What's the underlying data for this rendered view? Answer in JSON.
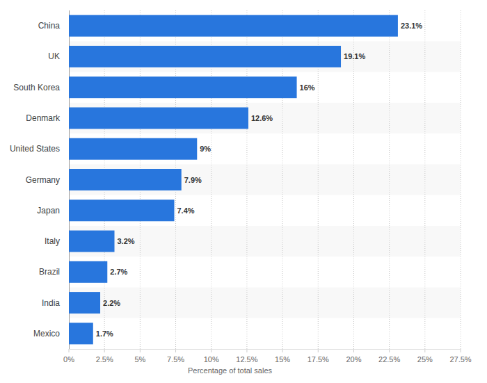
{
  "chart_data": {
    "type": "bar",
    "orientation": "horizontal",
    "categories": [
      "China",
      "UK",
      "South Korea",
      "Denmark",
      "United States",
      "Germany",
      "Japan",
      "Italy",
      "Brazil",
      "India",
      "Mexico"
    ],
    "values": [
      23.1,
      19.1,
      16,
      12.6,
      9,
      7.9,
      7.4,
      3.2,
      2.7,
      2.2,
      1.7
    ],
    "value_labels": [
      "23.1%",
      "19.1%",
      "16%",
      "12.6%",
      "9%",
      "7.9%",
      "7.4%",
      "3.2%",
      "2.7%",
      "2.2%",
      "1.7%"
    ],
    "color": "#2876dd",
    "xlabel": "Percentage of total sales",
    "xlim": [
      0,
      27.5
    ],
    "xticks": [
      {
        "value": 0,
        "label": "0%"
      },
      {
        "value": 2.5,
        "label": "2.5%"
      },
      {
        "value": 5,
        "label": "5%"
      },
      {
        "value": 7.5,
        "label": "7.5%"
      },
      {
        "value": 10,
        "label": "10%"
      },
      {
        "value": 12.5,
        "label": "12.5%"
      },
      {
        "value": 15,
        "label": "15%"
      },
      {
        "value": 17.5,
        "label": "17.5%"
      },
      {
        "value": 20,
        "label": "20%"
      },
      {
        "value": 22.5,
        "label": "22.5%"
      },
      {
        "value": 25,
        "label": "25%"
      },
      {
        "value": 27.5,
        "label": "27.5%"
      }
    ],
    "grid": true,
    "data_labels": true
  }
}
